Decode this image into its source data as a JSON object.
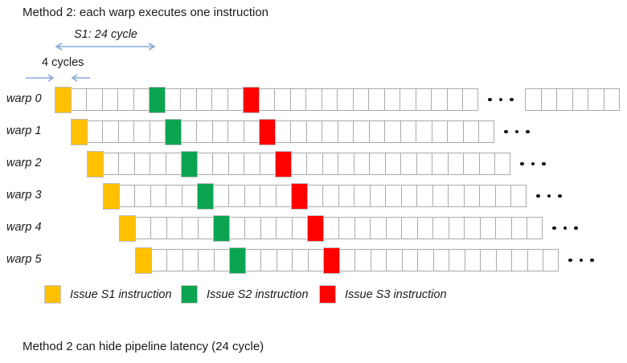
{
  "title": "Method 2: each warp executes one instruction",
  "footer": "Method 2 can hide pipeline latency (24 cycle)",
  "annotations": {
    "s1_span_label": "S1: 24 cycle",
    "cell_width_label": "4 cycles"
  },
  "colors": {
    "s1": "#FFC000",
    "s2": "#0CA54F",
    "s3": "#FF0000",
    "cell_border": "#ABABAB",
    "arrow": "#87A9DB",
    "text": "#1A1A1A"
  },
  "warps": [
    {
      "label": "warp 0",
      "start_slot": 0,
      "num_cells": 27,
      "s1_cell": 0,
      "s2_cell": 6,
      "s3_cell": 12,
      "ellipsis": true,
      "trailing_cells": 6
    },
    {
      "label": "warp 1",
      "start_slot": 1,
      "num_cells": 27,
      "s1_cell": 0,
      "s2_cell": 6,
      "s3_cell": 12,
      "ellipsis": true,
      "trailing_cells": 0
    },
    {
      "label": "warp 2",
      "start_slot": 2,
      "num_cells": 27,
      "s1_cell": 0,
      "s2_cell": 6,
      "s3_cell": 12,
      "ellipsis": true,
      "trailing_cells": 0
    },
    {
      "label": "warp 3",
      "start_slot": 3,
      "num_cells": 27,
      "s1_cell": 0,
      "s2_cell": 6,
      "s3_cell": 12,
      "ellipsis": true,
      "trailing_cells": 0
    },
    {
      "label": "warp 4",
      "start_slot": 4,
      "num_cells": 27,
      "s1_cell": 0,
      "s2_cell": 6,
      "s3_cell": 12,
      "ellipsis": true,
      "trailing_cells": 0
    },
    {
      "label": "warp 5",
      "start_slot": 5,
      "num_cells": 27,
      "s1_cell": 0,
      "s2_cell": 6,
      "s3_cell": 12,
      "ellipsis": true,
      "trailing_cells": 0
    }
  ],
  "legend": [
    {
      "label": "Issue S1 instruction",
      "series": "s1"
    },
    {
      "label": "Issue S2 instruction",
      "series": "s2"
    },
    {
      "label": "Issue S3 instruction",
      "series": "s3"
    }
  ]
}
